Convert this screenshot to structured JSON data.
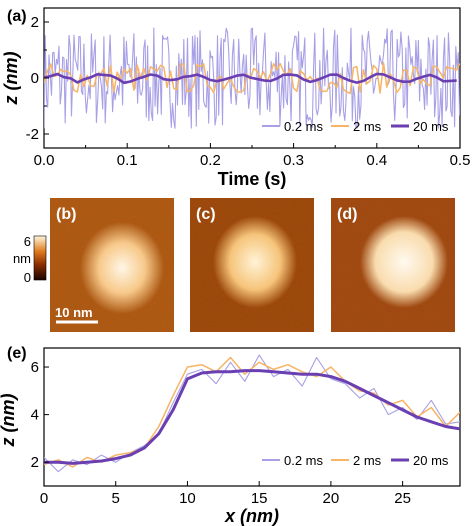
{
  "panel_labels": {
    "a": "(a)",
    "b": "(b)",
    "c": "(c)",
    "d": "(d)",
    "e": "(e)"
  },
  "colorbar": {
    "max": "6",
    "unit": "nm",
    "min": "0"
  },
  "scalebar": {
    "label": "10 nm",
    "length_nm": 10
  },
  "colors": {
    "s02": "#a8a0e6",
    "s2": "#f7b465",
    "s20": "#6a3fb2",
    "axes": "#000000"
  },
  "chart_data": [
    {
      "type": "line",
      "panel": "(a)",
      "xlabel": "Time (s)",
      "ylabel": "z (nm)",
      "xlim": [
        0,
        0.5
      ],
      "ylim": [
        -2.5,
        2.5
      ],
      "xticks": [
        "0.0",
        "0.1",
        "0.2",
        "0.3",
        "0.4",
        "0.5"
      ],
      "yticks": [
        "-2",
        "0",
        "2"
      ],
      "legend_position": "bottom-right",
      "series": [
        {
          "name": "0.2 ms",
          "sample_interval_s": 0.0002,
          "amplitude_nm": 1.8,
          "note": "noise"
        },
        {
          "name": "2 ms",
          "sample_interval_s": 0.002,
          "amplitude_nm": 0.55
        },
        {
          "name": "20 ms",
          "sample_interval_s": 0.02,
          "amplitude_nm": 0.15
        }
      ]
    },
    {
      "type": "heatmap",
      "panels": [
        "(b)",
        "(c)",
        "(d)"
      ],
      "colormap": "afmhot",
      "range_nm": [
        0,
        6
      ]
    },
    {
      "type": "line",
      "panel": "(e)",
      "xlabel": "x (nm)",
      "ylabel": "z (nm)",
      "xlim": [
        0,
        29
      ],
      "ylim": [
        1,
        6.8
      ],
      "xticks": [
        "0",
        "5",
        "10",
        "15",
        "20",
        "25"
      ],
      "yticks": [
        "2",
        "4",
        "6"
      ],
      "legend_position": "bottom-right",
      "x": [
        0,
        1,
        2,
        3,
        4,
        5,
        6,
        7,
        8,
        9,
        10,
        11,
        12,
        13,
        14,
        15,
        16,
        17,
        18,
        19,
        20,
        21,
        22,
        23,
        24,
        25,
        26,
        27,
        28,
        29
      ],
      "series": [
        {
          "name": "0.2 ms",
          "values": [
            2.2,
            1.6,
            2.1,
            1.9,
            2.3,
            2.0,
            2.4,
            2.7,
            3.2,
            4.5,
            5.7,
            5.9,
            5.3,
            6.2,
            5.4,
            6.5,
            5.6,
            5.9,
            5.2,
            6.4,
            5.5,
            5.3,
            4.7,
            5.1,
            4.0,
            4.3,
            3.8,
            4.6,
            3.6,
            3.7
          ]
        },
        {
          "name": "2 ms",
          "values": [
            1.9,
            2.1,
            1.8,
            2.2,
            2.0,
            2.3,
            2.4,
            2.6,
            3.5,
            4.8,
            6.0,
            6.1,
            5.8,
            6.4,
            5.7,
            6.2,
            5.9,
            6.1,
            5.8,
            5.6,
            6.0,
            5.4,
            5.0,
            4.9,
            4.4,
            4.6,
            3.9,
            4.3,
            3.5,
            4.1
          ]
        },
        {
          "name": "20 ms",
          "values": [
            2.0,
            2.0,
            1.95,
            2.0,
            2.05,
            2.15,
            2.3,
            2.6,
            3.2,
            4.2,
            5.5,
            5.75,
            5.8,
            5.8,
            5.85,
            5.85,
            5.8,
            5.75,
            5.7,
            5.7,
            5.6,
            5.4,
            5.1,
            4.8,
            4.5,
            4.2,
            3.9,
            3.7,
            3.5,
            3.4
          ]
        }
      ]
    }
  ]
}
